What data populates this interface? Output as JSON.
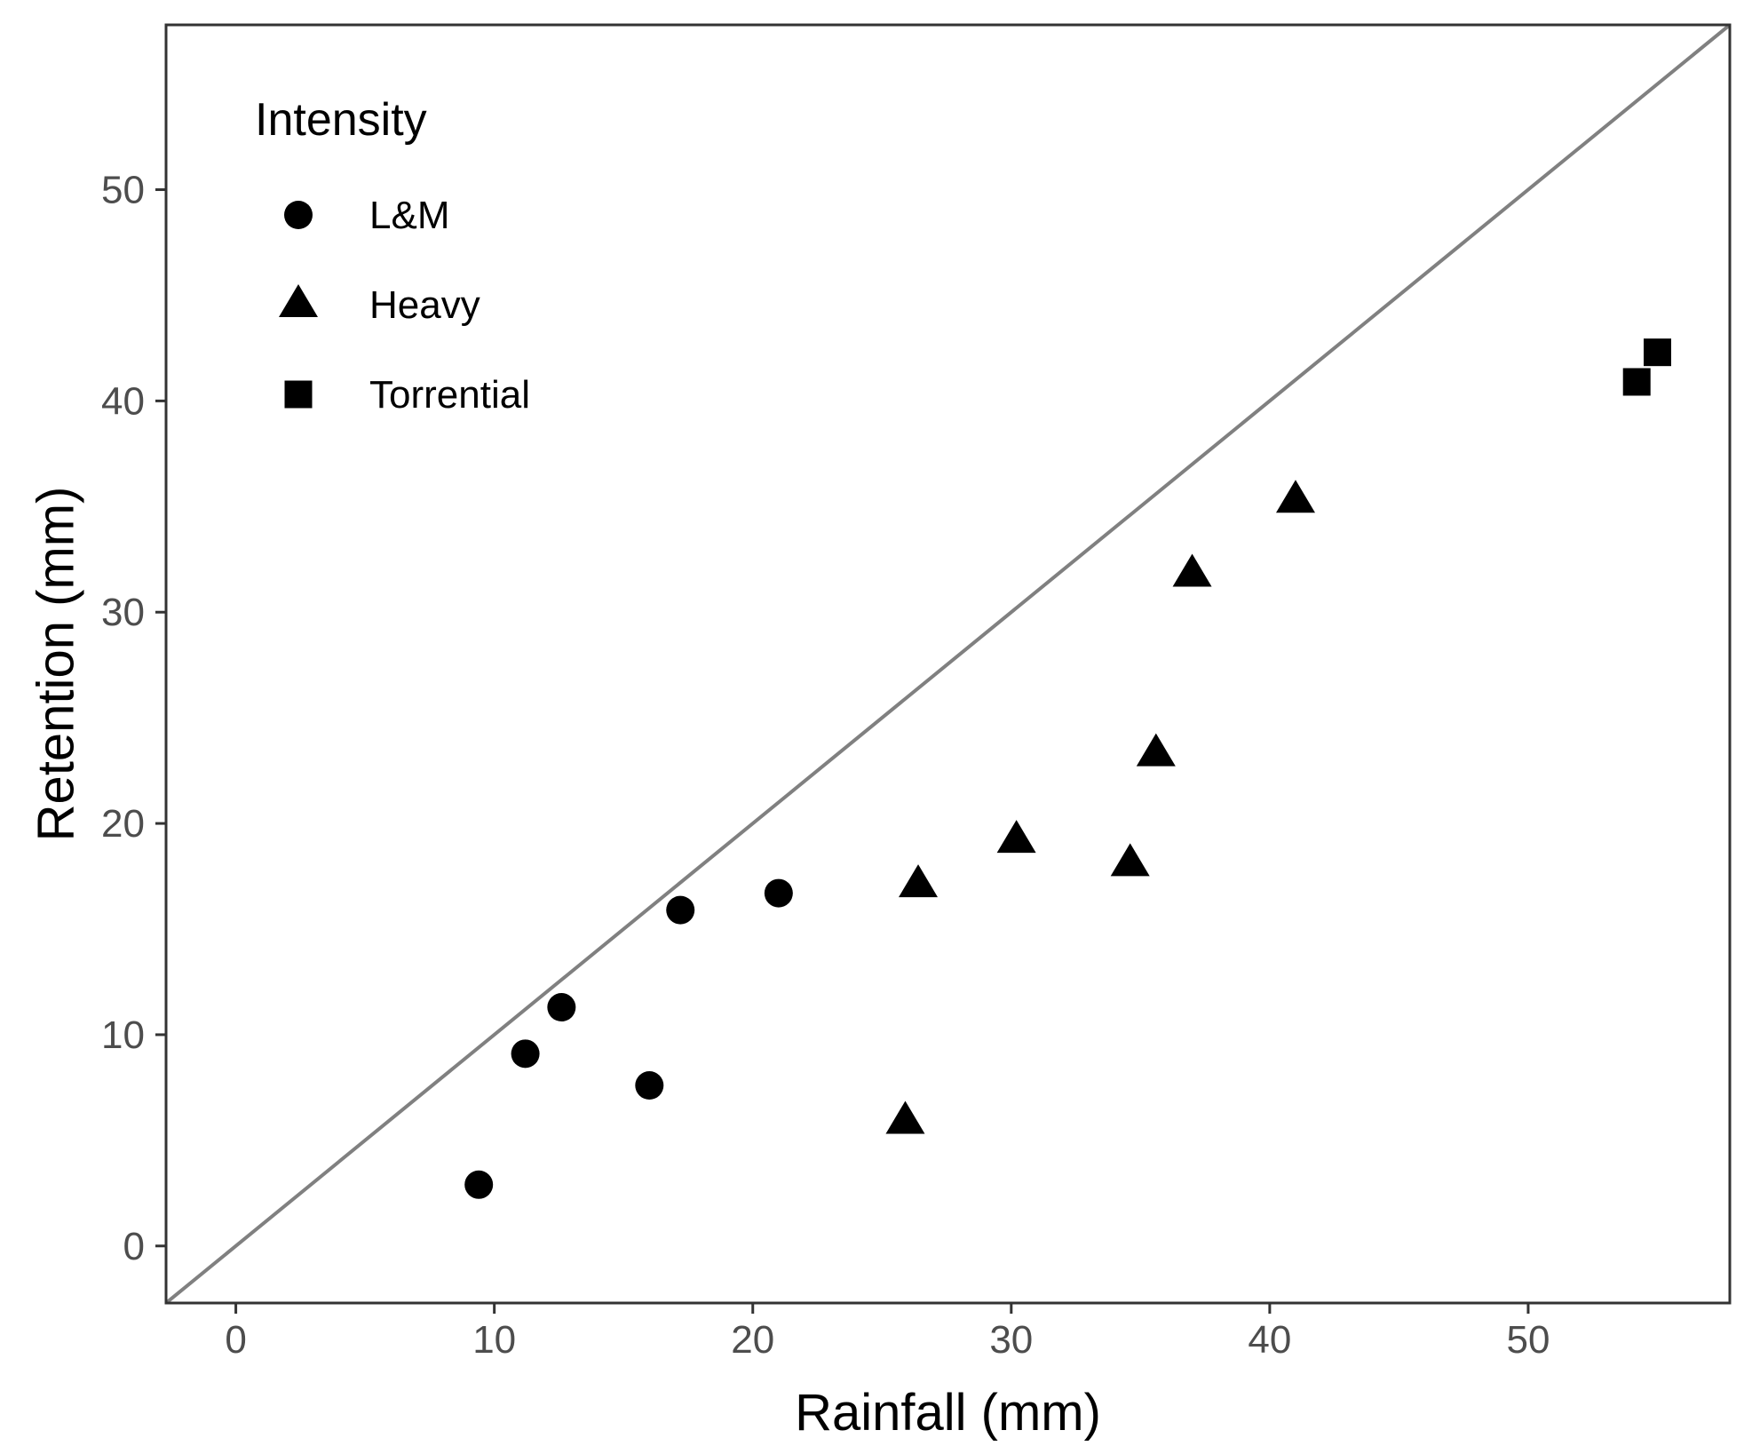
{
  "chart_data": {
    "type": "scatter",
    "xlabel": "Rainfall (mm)",
    "ylabel": "Retention (mm)",
    "xlim": [
      -2.7,
      57.8
    ],
    "ylim": [
      -2.7,
      57.8
    ],
    "xticks": [
      0,
      10,
      20,
      30,
      40,
      50
    ],
    "yticks": [
      0,
      10,
      20,
      30,
      40,
      50
    ],
    "grid": false,
    "reference_line": {
      "type": "1:1",
      "slope": 1,
      "intercept": 0,
      "color": "#808080"
    },
    "legend": {
      "title": "Intensity",
      "position": "top-left",
      "entries": [
        {
          "label": "L&M",
          "shape": "circle"
        },
        {
          "label": "Heavy",
          "shape": "triangle"
        },
        {
          "label": "Torrential",
          "shape": "square"
        }
      ]
    },
    "series": [
      {
        "name": "L&M",
        "shape": "circle",
        "points": [
          {
            "x": 9.4,
            "y": 2.9
          },
          {
            "x": 11.2,
            "y": 9.1
          },
          {
            "x": 12.6,
            "y": 11.3
          },
          {
            "x": 16.0,
            "y": 7.6
          },
          {
            "x": 17.2,
            "y": 15.9
          },
          {
            "x": 21.0,
            "y": 16.7
          }
        ]
      },
      {
        "name": "Heavy",
        "shape": "triangle",
        "points": [
          {
            "x": 25.9,
            "y": 5.9
          },
          {
            "x": 26.4,
            "y": 17.1
          },
          {
            "x": 30.2,
            "y": 19.2
          },
          {
            "x": 34.6,
            "y": 18.1
          },
          {
            "x": 35.6,
            "y": 23.3
          },
          {
            "x": 37.0,
            "y": 31.8
          },
          {
            "x": 41.0,
            "y": 35.3
          }
        ]
      },
      {
        "name": "Torrential",
        "shape": "square",
        "points": [
          {
            "x": 54.2,
            "y": 40.9
          },
          {
            "x": 55.0,
            "y": 42.3
          }
        ]
      }
    ]
  }
}
